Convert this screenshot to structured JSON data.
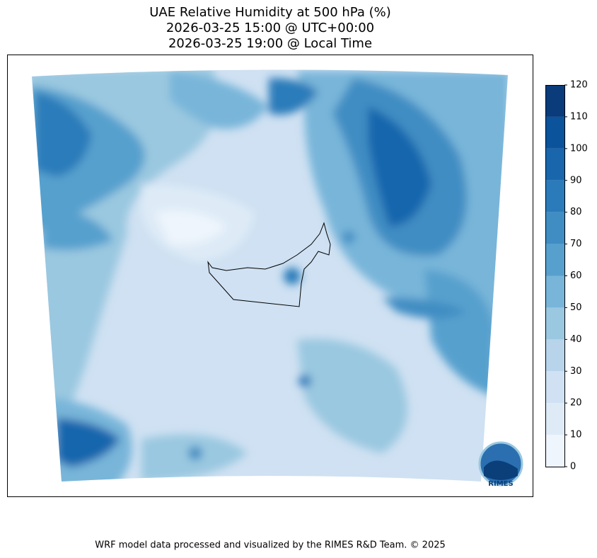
{
  "chart_data": {
    "type": "contourf",
    "title": [
      "UAE Relative Humidity at 500 hPa (%)",
      "2026-03-25 15:00 @ UTC+00:00",
      "2026-03-25 19:00 @ Local Time"
    ],
    "colorbar": {
      "lim": [
        0,
        120
      ],
      "ticks": [
        0,
        10,
        20,
        30,
        40,
        50,
        60,
        70,
        80,
        90,
        100,
        110,
        120
      ],
      "colors": [
        "#eef5fc",
        "#deebf7",
        "#cfe1f2",
        "#b7d4ea",
        "#9ac8e0",
        "#78b5d9",
        "#57a0ce",
        "#3f8dc3",
        "#2b7bba",
        "#1966ad",
        "#0b539b",
        "#0a3b7a"
      ]
    },
    "footer": "WRF model data processed and visualized by the RIMES R&D Team. © 2025",
    "logo": "RIMES"
  }
}
